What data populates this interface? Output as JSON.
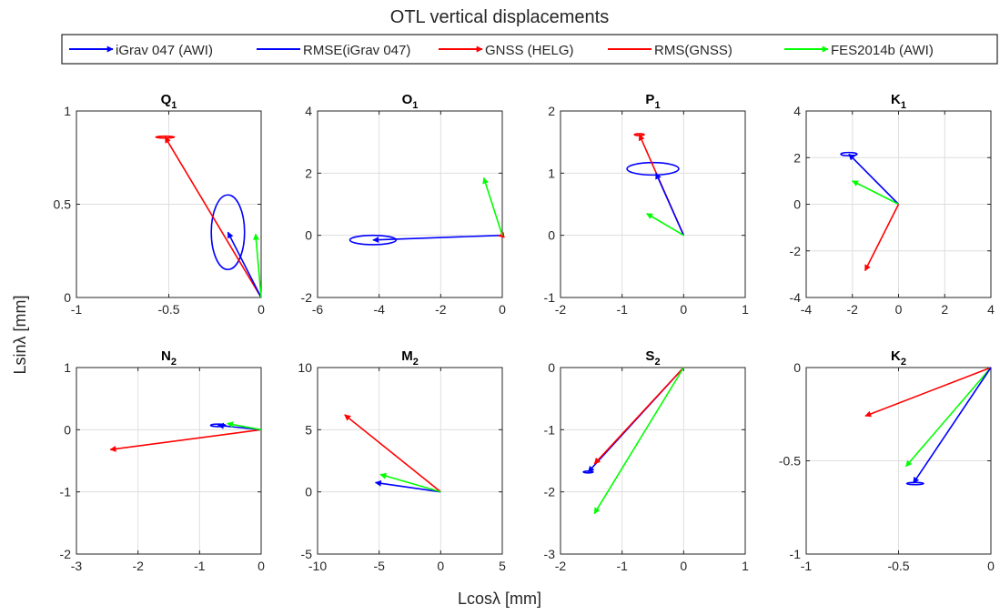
{
  "figure": {
    "title": "OTL vertical displacements",
    "xlabel_html": "Lcosλ [mm]",
    "ylabel_html": "Lsinλ [mm]"
  },
  "legend": [
    {
      "label": "iGrav 047 (AWI)",
      "color": "#0000ff",
      "style": "arrow"
    },
    {
      "label": "RMSE(iGrav 047)",
      "color": "#0000ff",
      "style": "line"
    },
    {
      "label": "GNSS (HELG)",
      "color": "#ff0000",
      "style": "arrow"
    },
    {
      "label": "RMS(GNSS)",
      "color": "#ff0000",
      "style": "line"
    },
    {
      "label": "FES2014b (AWI)",
      "color": "#00ff00",
      "style": "arrow"
    }
  ],
  "chart_data": [
    {
      "type": "phasor",
      "title": "Q",
      "title_sub": "1",
      "xlim": [
        -1,
        0
      ],
      "ylim": [
        0,
        1
      ],
      "xticks": [
        -1,
        -0.5,
        0
      ],
      "yticks": [
        0,
        0.5,
        1
      ],
      "xticklabels": [
        "-1",
        "-0.5",
        "0"
      ],
      "yticklabels": [
        "0",
        "0.5",
        "1"
      ],
      "series": [
        {
          "color": "#ff0000",
          "x": -0.52,
          "y": 0.86
        },
        {
          "color": "#0000ff",
          "x": -0.18,
          "y": 0.35
        },
        {
          "color": "#00ff00",
          "x": -0.03,
          "y": 0.34
        }
      ],
      "errors": [
        {
          "color": "#0000ff",
          "cx": -0.18,
          "cy": 0.35,
          "rx": 0.09,
          "ry": 0.2
        },
        {
          "color": "#ff0000",
          "cx": -0.52,
          "cy": 0.86,
          "rx": 0.05,
          "ry": 0.004
        }
      ]
    },
    {
      "type": "phasor",
      "title": "O",
      "title_sub": "1",
      "xlim": [
        -6,
        0
      ],
      "ylim": [
        -2,
        4
      ],
      "xticks": [
        -6,
        -4,
        -2,
        0
      ],
      "yticks": [
        -2,
        0,
        2,
        4
      ],
      "xticklabels": [
        "-6",
        "-4",
        "-2",
        "0"
      ],
      "yticklabels": [
        "-2",
        "0",
        "2",
        "4"
      ],
      "series": [
        {
          "color": "#0000ff",
          "x": -4.2,
          "y": -0.15
        },
        {
          "color": "#ff0000",
          "x": -0.12,
          "y": -0.02
        },
        {
          "color": "#00ff00",
          "x": -0.6,
          "y": 1.85
        }
      ],
      "errors": [
        {
          "color": "#0000ff",
          "cx": -4.2,
          "cy": -0.15,
          "rx": 0.75,
          "ry": 0.15
        }
      ]
    },
    {
      "type": "phasor",
      "title": "P",
      "title_sub": "1",
      "xlim": [
        -2,
        1
      ],
      "ylim": [
        -1,
        2
      ],
      "xticks": [
        -2,
        -1,
        0,
        1
      ],
      "yticks": [
        -1,
        0,
        1,
        2
      ],
      "xticklabels": [
        "-2",
        "-1",
        "0",
        "1"
      ],
      "yticklabels": [
        "-1",
        "0",
        "1",
        "2"
      ],
      "series": [
        {
          "color": "#ff0000",
          "x": -0.72,
          "y": 1.62
        },
        {
          "color": "#0000ff",
          "x": -0.45,
          "y": 1.0
        },
        {
          "color": "#00ff00",
          "x": -0.6,
          "y": 0.35
        }
      ],
      "errors": [
        {
          "color": "#0000ff",
          "cx": -0.5,
          "cy": 1.07,
          "rx": 0.42,
          "ry": 0.1
        },
        {
          "color": "#ff0000",
          "cx": -0.72,
          "cy": 1.62,
          "rx": 0.08,
          "ry": 0.01
        }
      ]
    },
    {
      "type": "phasor",
      "title": "K",
      "title_sub": "1",
      "xlim": [
        -4,
        4
      ],
      "ylim": [
        -4,
        4
      ],
      "xticks": [
        -4,
        -2,
        0,
        2,
        4
      ],
      "yticks": [
        -4,
        -2,
        0,
        2,
        4
      ],
      "xticklabels": [
        "-4",
        "-2",
        "0",
        "2",
        "4"
      ],
      "yticklabels": [
        "-4",
        "-2",
        "0",
        "2",
        "4"
      ],
      "series": [
        {
          "color": "#0000ff",
          "x": -2.15,
          "y": 2.15
        },
        {
          "color": "#00ff00",
          "x": -2.0,
          "y": 1.0
        },
        {
          "color": "#ff0000",
          "x": -1.45,
          "y": -2.85
        }
      ],
      "errors": [
        {
          "color": "#0000ff",
          "cx": -2.15,
          "cy": 2.15,
          "rx": 0.35,
          "ry": 0.07
        }
      ]
    },
    {
      "type": "phasor",
      "title": "N",
      "title_sub": "2",
      "xlim": [
        -3,
        0
      ],
      "ylim": [
        -2,
        1
      ],
      "xticks": [
        -3,
        -2,
        -1,
        0
      ],
      "yticks": [
        -2,
        -1,
        0,
        1
      ],
      "xticklabels": [
        "-3",
        "-2",
        "-1",
        "0"
      ],
      "yticklabels": [
        "-2",
        "-1",
        "0",
        "1"
      ],
      "series": [
        {
          "color": "#ff0000",
          "x": -2.45,
          "y": -0.32
        },
        {
          "color": "#0000ff",
          "x": -0.7,
          "y": 0.07
        },
        {
          "color": "#00ff00",
          "x": -0.55,
          "y": 0.1
        }
      ],
      "errors": [
        {
          "color": "#0000ff",
          "cx": -0.7,
          "cy": 0.07,
          "rx": 0.12,
          "ry": 0.02
        }
      ]
    },
    {
      "type": "phasor",
      "title": "M",
      "title_sub": "2",
      "xlim": [
        -10,
        5
      ],
      "ylim": [
        -5,
        10
      ],
      "xticks": [
        -10,
        -5,
        0,
        5
      ],
      "yticks": [
        -5,
        0,
        5,
        10
      ],
      "xticklabels": [
        "-10",
        "-5",
        "0",
        "5"
      ],
      "yticklabels": [
        "-5",
        "0",
        "5",
        "10"
      ],
      "series": [
        {
          "color": "#ff0000",
          "x": -7.8,
          "y": 6.2
        },
        {
          "color": "#0000ff",
          "x": -5.3,
          "y": 0.75
        },
        {
          "color": "#00ff00",
          "x": -4.9,
          "y": 1.4
        }
      ],
      "errors": []
    },
    {
      "type": "phasor",
      "title": "S",
      "title_sub": "2",
      "xlim": [
        -2,
        1
      ],
      "ylim": [
        -3,
        0
      ],
      "xticks": [
        -2,
        -1,
        0,
        1
      ],
      "yticks": [
        -3,
        -2,
        -1,
        0
      ],
      "xticklabels": [
        "-2",
        "-1",
        "0",
        "1"
      ],
      "yticklabels": [
        "-3",
        "-2",
        "-1",
        "0"
      ],
      "series": [
        {
          "color": "#0000ff",
          "x": -1.55,
          "y": -1.68
        },
        {
          "color": "#ff0000",
          "x": -1.45,
          "y": -1.55
        },
        {
          "color": "#00ff00",
          "x": -1.45,
          "y": -2.35
        }
      ],
      "errors": [
        {
          "color": "#0000ff",
          "cx": -1.55,
          "cy": -1.68,
          "rx": 0.08,
          "ry": 0.01
        }
      ]
    },
    {
      "type": "phasor",
      "title": "K",
      "title_sub": "2",
      "xlim": [
        -1,
        0
      ],
      "ylim": [
        -1,
        0
      ],
      "xticks": [
        -1,
        -0.5,
        0
      ],
      "yticks": [
        -1,
        -0.5,
        0
      ],
      "xticklabels": [
        "-1",
        "-0.5",
        "0"
      ],
      "yticklabels": [
        "-1",
        "-0.5",
        "0"
      ],
      "series": [
        {
          "color": "#ff0000",
          "x": -0.68,
          "y": -0.26
        },
        {
          "color": "#00ff00",
          "x": -0.46,
          "y": -0.53
        },
        {
          "color": "#0000ff",
          "x": -0.42,
          "y": -0.62
        }
      ],
      "errors": [
        {
          "color": "#0000ff",
          "cx": -0.41,
          "cy": -0.622,
          "rx": 0.045,
          "ry": 0.006
        }
      ]
    }
  ]
}
